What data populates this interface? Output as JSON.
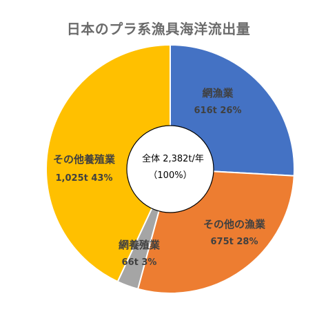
{
  "chart_data": {
    "type": "pie",
    "title": "日本のプラ系漁具海洋流出量",
    "center_label": {
      "line1": "全体 2,382t/年",
      "line2": "（100%）"
    },
    "slices": [
      {
        "label": "網漁業",
        "value": 616,
        "value_text": "616t 26%",
        "percent": 26,
        "color": "#4472C4",
        "text_color": "#404040"
      },
      {
        "label": "その他の漁業",
        "value": 675,
        "value_text": "675t 28%",
        "percent": 28,
        "color": "#ED7D31",
        "text_color": "#404040"
      },
      {
        "label": "網養殖業",
        "value": 66,
        "value_text": "66t 3%",
        "percent": 3,
        "color": "#A5A5A5",
        "text_color": "#404040"
      },
      {
        "label": "その他養殖業",
        "value": 1025,
        "value_text": "1,025t 43%",
        "percent": 43,
        "color": "#FFC000",
        "text_color": "#404040"
      }
    ]
  }
}
